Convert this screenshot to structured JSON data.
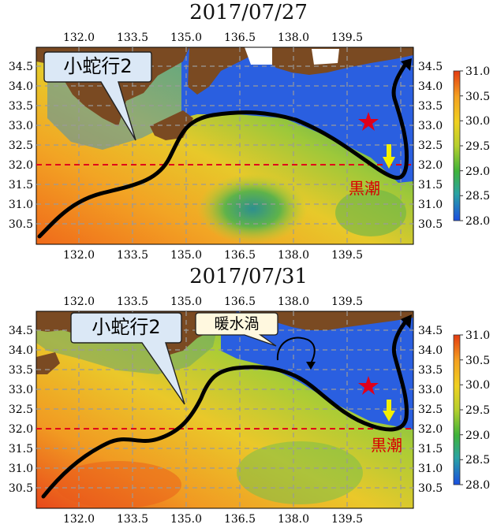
{
  "panels": [
    {
      "date": "2017/07/27",
      "labels": {
        "meander": "小蛇行2",
        "current": "黒潮"
      }
    },
    {
      "date": "2017/07/31",
      "labels": {
        "meander": "小蛇行2",
        "eddy": "暖水渦",
        "current": "黒潮"
      }
    }
  ],
  "axes": {
    "lon_ticks": [
      "132.0",
      "133.5",
      "135.0",
      "136.5",
      "138.0",
      "139.5"
    ],
    "lat_ticks": [
      "30.5",
      "31.0",
      "31.5",
      "32.0",
      "32.5",
      "33.0",
      "33.5",
      "34.0",
      "34.5"
    ],
    "lon_range": [
      130.7,
      141.2
    ],
    "lat_range": [
      30.1,
      34.9
    ],
    "grid": true,
    "reference_latitude": 32.0
  },
  "colorbar": {
    "ticks": [
      "31.0",
      "30.5",
      "30.0",
      "29.5",
      "29.0",
      "28.5",
      "28.0"
    ],
    "range": [
      28.0,
      31.0
    ],
    "colors": [
      "#1a4ee0",
      "#2aa3a3",
      "#3fb33a",
      "#b5cf2d",
      "#f0d020",
      "#f4a020",
      "#e33a10"
    ]
  },
  "colors": {
    "land": "#7a4a22",
    "reference_line": "#e0001a",
    "marker_star": "#e0001a",
    "arrow_yellow": "#f3f000",
    "current_path": "#000000",
    "label_text_red": "#d80000",
    "callout_fill": "#dbe8f6"
  },
  "icons": {
    "marker": "star-icon",
    "flow": "down-arrow-icon"
  }
}
